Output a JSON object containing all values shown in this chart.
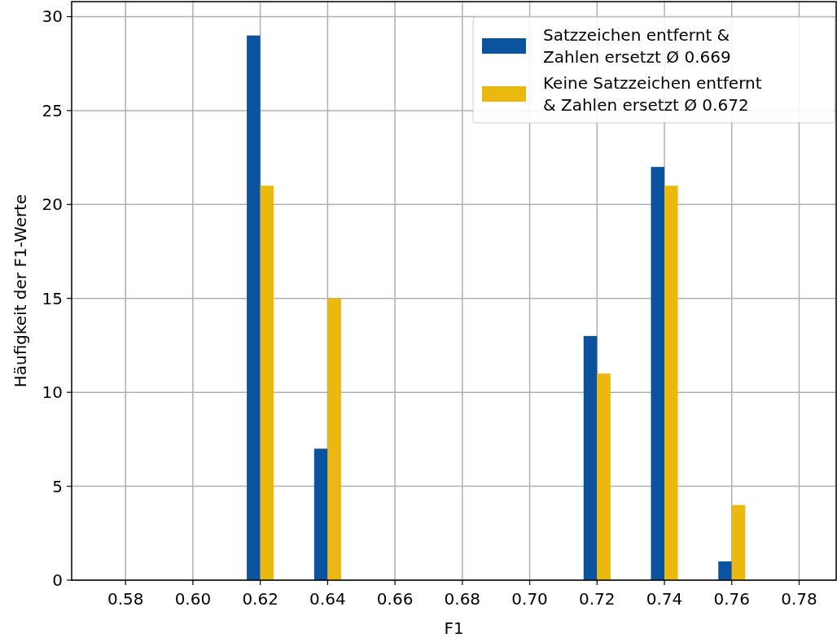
{
  "chart_data": {
    "type": "bar",
    "xlabel": "F1",
    "ylabel": "Häufigkeit der F1-Werte",
    "x": [
      0.62,
      0.64,
      0.72,
      0.74,
      0.76
    ],
    "series": [
      {
        "name": "Satzzeichen entfernt & Zahlen ersetzt Ø 0.669",
        "color": "#0b539e",
        "values": [
          29,
          7,
          13,
          22,
          1
        ]
      },
      {
        "name": "Keine Satzzeichen entfernt & Zahlen ersetzt Ø 0.672",
        "color": "#ebb80f",
        "values": [
          21,
          15,
          11,
          21,
          4
        ]
      }
    ],
    "xlim": [
      0.564,
      0.791
    ],
    "xticks": [
      {
        "value": 0.58,
        "label": "0.58"
      },
      {
        "value": 0.6,
        "label": "0.60"
      },
      {
        "value": 0.62,
        "label": "0.62"
      },
      {
        "value": 0.64,
        "label": "0.64"
      },
      {
        "value": 0.66,
        "label": "0.66"
      },
      {
        "value": 0.68,
        "label": "0.68"
      },
      {
        "value": 0.7,
        "label": "0.70"
      },
      {
        "value": 0.72,
        "label": "0.72"
      },
      {
        "value": 0.74,
        "label": "0.74"
      },
      {
        "value": 0.76,
        "label": "0.76"
      },
      {
        "value": 0.78,
        "label": "0.78"
      }
    ],
    "ylim": [
      0,
      30.8
    ],
    "yticks": [
      0,
      5,
      10,
      15,
      20,
      25,
      30
    ],
    "grid": true,
    "legend": "top right"
  }
}
